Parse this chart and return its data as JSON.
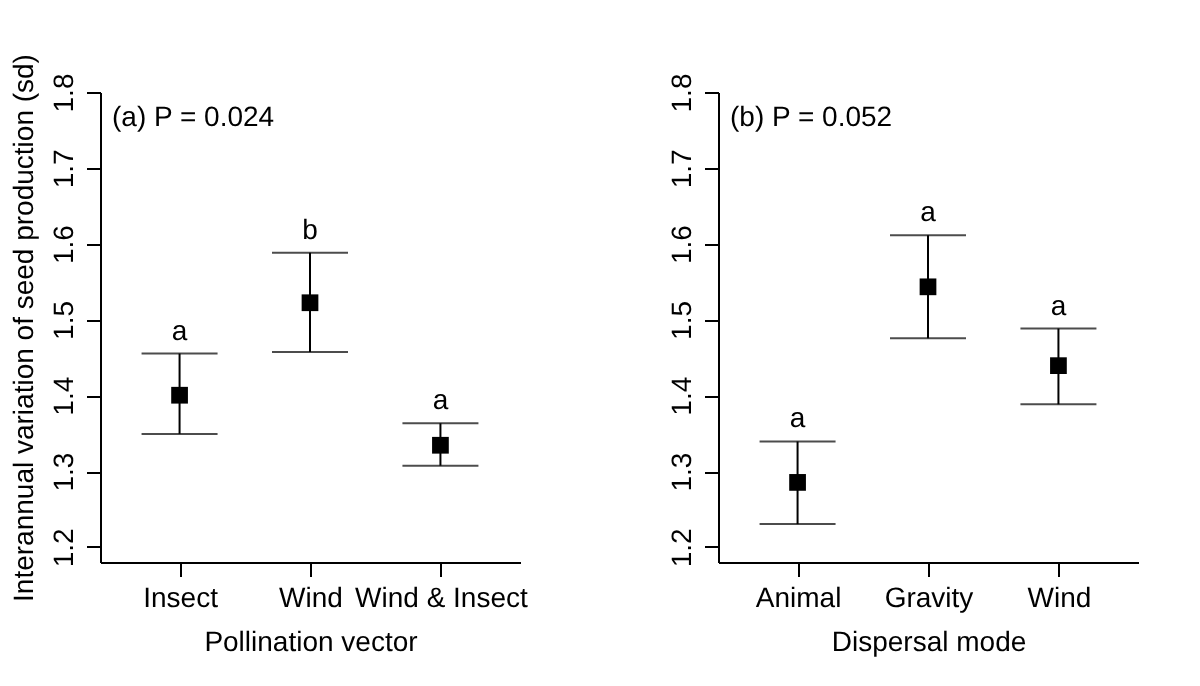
{
  "chart_data": [
    {
      "type": "scatter",
      "xlabel": "Pollination vector",
      "ylabel": "Interannual variation of seed production (sd)",
      "categories": [
        "Insect",
        "Wind",
        "Wind & Insect"
      ],
      "values": [
        1.4,
        1.522,
        1.334
      ],
      "errors": [
        [
          1.349,
          1.455
        ],
        [
          1.457,
          1.588
        ],
        [
          1.307,
          1.363
        ]
      ],
      "color": "#000000",
      "marker": "square",
      "ylim": [
        1.18,
        1.8
      ],
      "yticks": [
        1.2,
        1.3,
        1.4,
        1.5,
        1.6,
        1.7,
        1.8
      ],
      "annotations": [
        "(a) P   = 0.024",
        "a",
        "b",
        "a"
      ]
    },
    {
      "type": "scatter",
      "xlabel": "Dispersal mode",
      "categories": [
        "Animal",
        "Gravity",
        "Wind"
      ],
      "values": [
        1.285,
        1.543,
        1.439
      ],
      "errors": [
        [
          1.23,
          1.339
        ],
        [
          1.475,
          1.611
        ],
        [
          1.388,
          1.488
        ]
      ],
      "color": "#000000",
      "marker": "square",
      "ylim": [
        1.18,
        1.8
      ],
      "yticks": [
        1.2,
        1.3,
        1.4,
        1.5,
        1.6,
        1.7,
        1.8
      ],
      "annotations": [
        "(b) P   = 0.052",
        "a",
        "a",
        "a"
      ]
    }
  ]
}
